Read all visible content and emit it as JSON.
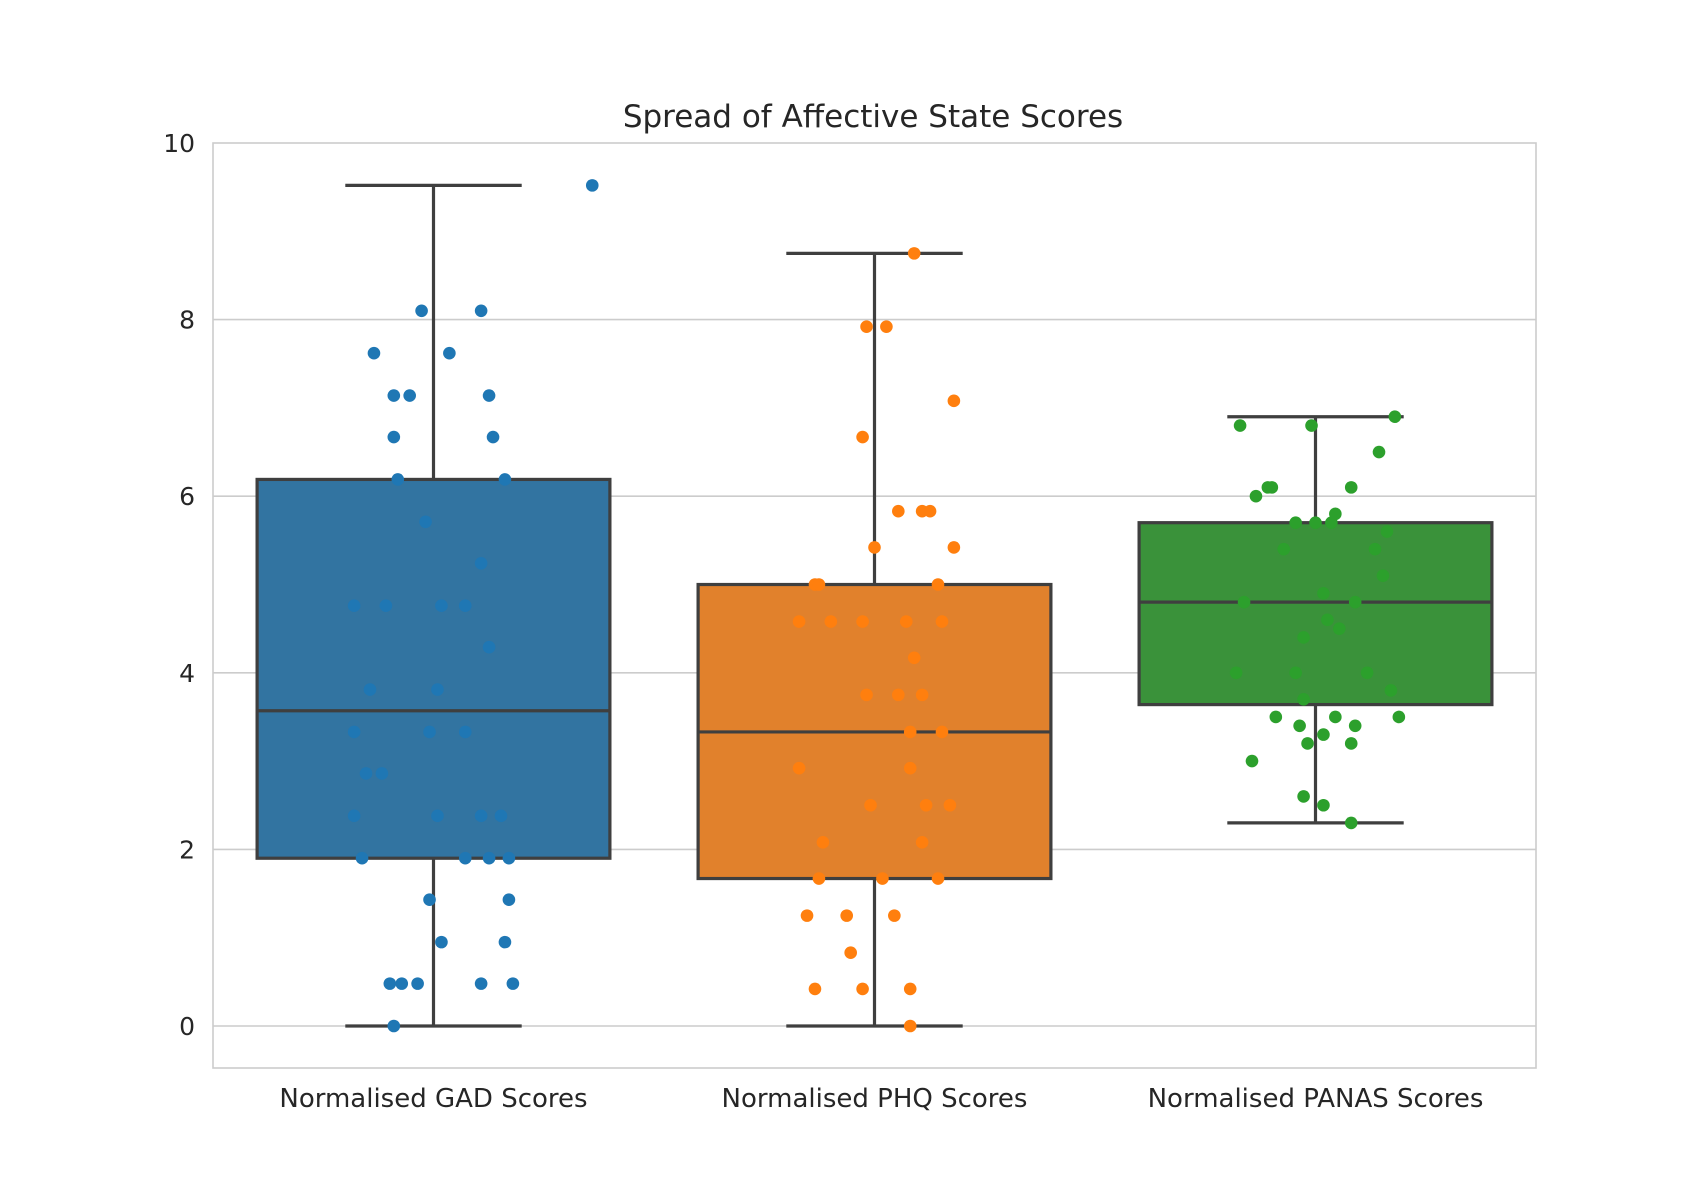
{
  "chart_data": {
    "type": "box",
    "title": "Spread of Affective State Scores",
    "xlabel": "",
    "ylabel": "",
    "ylim": [
      -0.47,
      10
    ],
    "yticks": [
      0,
      2,
      4,
      6,
      8,
      10
    ],
    "grid": true,
    "legend": "none",
    "categories": [
      "Normalised GAD Scores",
      "Normalised PHQ Scores",
      "Normalised PANAS Scores"
    ],
    "series": [
      {
        "color": "#3274a1",
        "point_color": "#1f77b4",
        "whisker_low": 0,
        "q1": 1.9,
        "median": 3.57,
        "q3": 6.19,
        "whisker_high": 9.52,
        "points": [
          [
            0.4,
            9.52
          ],
          [
            -0.03,
            8.1
          ],
          [
            0.12,
            8.1
          ],
          [
            -0.15,
            7.62
          ],
          [
            0.04,
            7.62
          ],
          [
            -0.1,
            7.14
          ],
          [
            -0.06,
            7.14
          ],
          [
            0.14,
            7.14
          ],
          [
            -0.1,
            6.67
          ],
          [
            0.15,
            6.67
          ],
          [
            -0.09,
            6.19
          ],
          [
            0.18,
            6.19
          ],
          [
            -0.02,
            5.71
          ],
          [
            0.12,
            5.24
          ],
          [
            -0.2,
            4.76
          ],
          [
            -0.12,
            4.76
          ],
          [
            0.02,
            4.76
          ],
          [
            0.08,
            4.76
          ],
          [
            0.14,
            4.29
          ],
          [
            -0.16,
            3.81
          ],
          [
            0.01,
            3.81
          ],
          [
            -0.2,
            3.33
          ],
          [
            -0.01,
            3.33
          ],
          [
            0.08,
            3.33
          ],
          [
            -0.17,
            2.86
          ],
          [
            -0.13,
            2.86
          ],
          [
            -0.2,
            2.38
          ],
          [
            0.01,
            2.38
          ],
          [
            0.12,
            2.38
          ],
          [
            0.17,
            2.38
          ],
          [
            -0.18,
            1.9
          ],
          [
            0.08,
            1.9
          ],
          [
            0.14,
            1.9
          ],
          [
            0.19,
            1.9
          ],
          [
            -0.01,
            1.43
          ],
          [
            0.19,
            1.43
          ],
          [
            0.02,
            0.95
          ],
          [
            0.18,
            0.95
          ],
          [
            -0.11,
            0.48
          ],
          [
            -0.08,
            0.48
          ],
          [
            -0.04,
            0.48
          ],
          [
            0.12,
            0.48
          ],
          [
            0.2,
            0.48
          ],
          [
            -0.1,
            0
          ]
        ]
      },
      {
        "color": "#e1812c",
        "point_color": "#ff7f0e",
        "whisker_low": 0,
        "q1": 1.67,
        "median": 3.33,
        "q3": 5.0,
        "whisker_high": 8.75,
        "points": [
          [
            0.1,
            8.75
          ],
          [
            -0.02,
            7.92
          ],
          [
            0.03,
            7.92
          ],
          [
            0.2,
            7.08
          ],
          [
            -0.03,
            6.67
          ],
          [
            0.06,
            5.83
          ],
          [
            0.12,
            5.83
          ],
          [
            0.14,
            5.83
          ],
          [
            0.0,
            5.42
          ],
          [
            0.2,
            5.42
          ],
          [
            -0.15,
            5.0
          ],
          [
            -0.14,
            5.0
          ],
          [
            0.16,
            5.0
          ],
          [
            -0.19,
            4.58
          ],
          [
            -0.11,
            4.58
          ],
          [
            -0.03,
            4.58
          ],
          [
            0.08,
            4.58
          ],
          [
            0.17,
            4.58
          ],
          [
            0.1,
            4.17
          ],
          [
            -0.02,
            3.75
          ],
          [
            0.06,
            3.75
          ],
          [
            0.12,
            3.75
          ],
          [
            0.09,
            3.33
          ],
          [
            0.17,
            3.33
          ],
          [
            -0.19,
            2.92
          ],
          [
            0.09,
            2.92
          ],
          [
            -0.01,
            2.5
          ],
          [
            0.13,
            2.5
          ],
          [
            0.19,
            2.5
          ],
          [
            -0.13,
            2.08
          ],
          [
            0.12,
            2.08
          ],
          [
            -0.14,
            1.67
          ],
          [
            0.02,
            1.67
          ],
          [
            0.16,
            1.67
          ],
          [
            -0.17,
            1.25
          ],
          [
            -0.07,
            1.25
          ],
          [
            0.05,
            1.25
          ],
          [
            -0.06,
            0.83
          ],
          [
            -0.15,
            0.42
          ],
          [
            -0.03,
            0.42
          ],
          [
            0.09,
            0.42
          ],
          [
            0.09,
            0
          ]
        ]
      },
      {
        "color": "#3a923a",
        "point_color": "#2ca02c",
        "whisker_low": 2.3,
        "q1": 3.64,
        "median": 4.8,
        "q3": 5.7,
        "whisker_high": 6.9,
        "points": [
          [
            0.2,
            6.9
          ],
          [
            -0.19,
            6.8
          ],
          [
            -0.01,
            6.8
          ],
          [
            0.16,
            6.5
          ],
          [
            -0.12,
            6.1
          ],
          [
            -0.11,
            6.1
          ],
          [
            0.09,
            6.1
          ],
          [
            -0.15,
            6.0
          ],
          [
            0.05,
            5.8
          ],
          [
            -0.05,
            5.7
          ],
          [
            0.0,
            5.7
          ],
          [
            0.04,
            5.7
          ],
          [
            0.18,
            5.6
          ],
          [
            -0.08,
            5.4
          ],
          [
            0.15,
            5.4
          ],
          [
            0.17,
            5.1
          ],
          [
            0.02,
            4.9
          ],
          [
            0.1,
            4.8
          ],
          [
            -0.18,
            4.8
          ],
          [
            0.03,
            4.6
          ],
          [
            0.06,
            4.5
          ],
          [
            -0.03,
            4.4
          ],
          [
            -0.2,
            4.0
          ],
          [
            -0.05,
            4.0
          ],
          [
            0.13,
            4.0
          ],
          [
            0.19,
            3.8
          ],
          [
            -0.03,
            3.7
          ],
          [
            -0.1,
            3.5
          ],
          [
            0.05,
            3.5
          ],
          [
            0.21,
            3.5
          ],
          [
            -0.04,
            3.4
          ],
          [
            0.1,
            3.4
          ],
          [
            0.02,
            3.3
          ],
          [
            -0.02,
            3.2
          ],
          [
            0.09,
            3.2
          ],
          [
            -0.16,
            3.0
          ],
          [
            -0.03,
            2.6
          ],
          [
            0.02,
            2.5
          ],
          [
            0.09,
            2.3
          ]
        ]
      }
    ]
  }
}
